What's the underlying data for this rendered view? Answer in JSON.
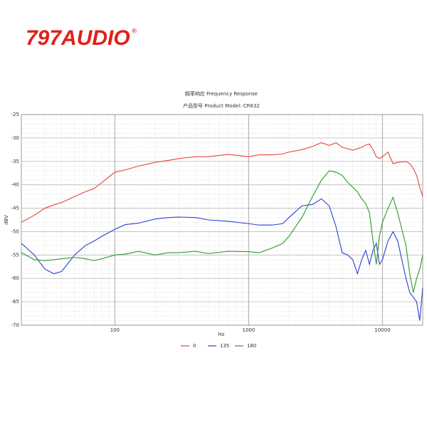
{
  "logo": {
    "text": "797AUDIO",
    "mark": "®"
  },
  "chart_data": {
    "type": "line",
    "title": "頻率响应 Frequency Response",
    "subtitle": "产品型号 Product Model: CR632",
    "x_label": "Hz",
    "y_label": "dBV",
    "x_scale": "log",
    "grid": true,
    "legend": "bottom",
    "xlim": [
      20,
      20000
    ],
    "ylim": [
      -70,
      -25
    ],
    "xticks": [
      100,
      1000,
      10000
    ],
    "yticks": [
      -25,
      -30,
      -35,
      -40,
      -45,
      -50,
      -55,
      -60,
      -65,
      -70
    ],
    "x": [
      20,
      25,
      30,
      35,
      40,
      50,
      60,
      70,
      80,
      100,
      120,
      150,
      200,
      250,
      300,
      400,
      500,
      700,
      1000,
      1200,
      1500,
      1800,
      2000,
      2500,
      3000,
      3500,
      4000,
      4500,
      5000,
      5500,
      6000,
      6500,
      7000,
      7500,
      8000,
      8500,
      9000,
      9500,
      10000,
      11000,
      12000,
      13000,
      15000,
      16000,
      17000,
      18000,
      19000,
      20000
    ],
    "series": [
      {
        "name": "0",
        "color": "#e8433a",
        "values": [
          -48,
          -46.5,
          -45,
          -44.3,
          -43.8,
          -42.5,
          -41.5,
          -40.8,
          -39.5,
          -37.3,
          -36.8,
          -36,
          -35.2,
          -34.8,
          -34.4,
          -34,
          -34,
          -33.5,
          -34,
          -33.6,
          -33.6,
          -33.4,
          -33,
          -32.5,
          -31.8,
          -31,
          -31.6,
          -31,
          -32,
          -32.3,
          -32.6,
          -32.3,
          -32,
          -31.5,
          -31.3,
          -32.5,
          -34,
          -34.4,
          -34,
          -33,
          -35.5,
          -35.2,
          -35,
          -35.5,
          -36.5,
          -38,
          -40.5,
          -42.5
        ]
      },
      {
        "name": "135",
        "color": "#2b3fcf",
        "values": [
          -52.5,
          -55,
          -58,
          -59,
          -58.5,
          -55,
          -53,
          -52,
          -51,
          -49.5,
          -48.5,
          -48.2,
          -47.3,
          -47,
          -46.9,
          -47,
          -47.5,
          -47.8,
          -48.3,
          -48.6,
          -48.6,
          -48.3,
          -47,
          -44.5,
          -44.2,
          -43,
          -44.5,
          -49,
          -54.5,
          -55,
          -56,
          -59,
          -56,
          -54,
          -57,
          -54,
          -52.5,
          -57,
          -56,
          -52,
          -50,
          -52,
          -60,
          -63,
          -64,
          -65,
          -69,
          -62
        ]
      },
      {
        "name": "180",
        "color": "#2a9a2a",
        "values": [
          -54.5,
          -56,
          -56.2,
          -56,
          -55.8,
          -55.5,
          -55.8,
          -56.2,
          -55.8,
          -55,
          -54.8,
          -54.2,
          -55,
          -54.5,
          -54.5,
          -54.2,
          -54.7,
          -54.2,
          -54.3,
          -54.5,
          -53.5,
          -52.5,
          -51,
          -47,
          -42.5,
          -39,
          -37,
          -37.3,
          -38,
          -39.5,
          -40.5,
          -41.5,
          -43,
          -44,
          -46,
          -52,
          -57,
          -51,
          -48,
          -45,
          -42.7,
          -46,
          -53,
          -59,
          -63,
          -60,
          -58,
          -55
        ]
      }
    ]
  }
}
